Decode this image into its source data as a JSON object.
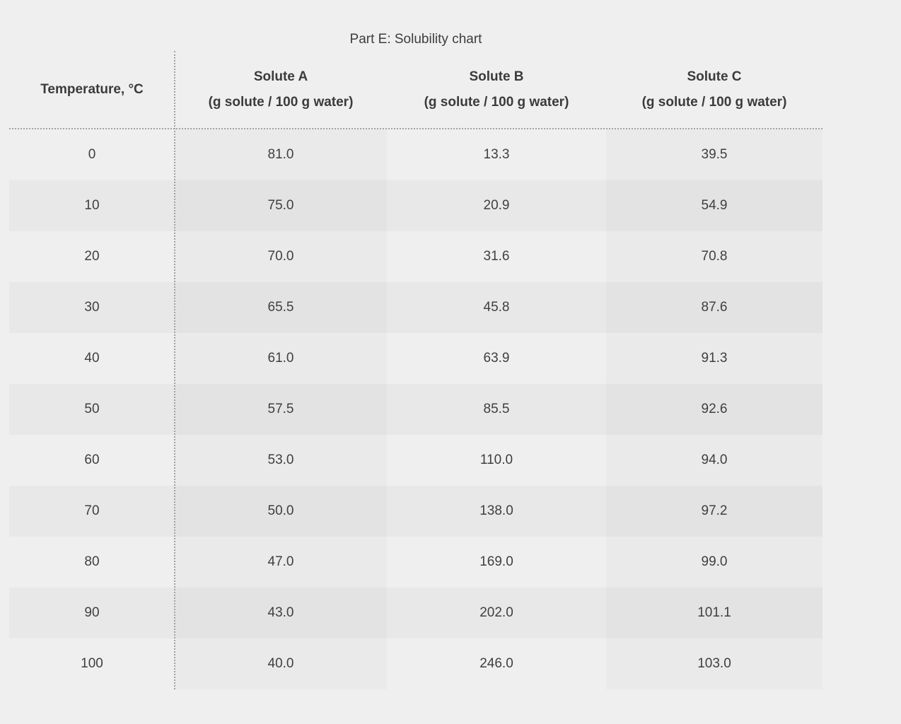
{
  "title": "Part E: Solubility chart",
  "table": {
    "headers": {
      "temperature": "Temperature, °C",
      "solute_a": "Solute A",
      "solute_b": "Solute B",
      "solute_c": "Solute C",
      "unit": "(g solute / 100 g water)"
    },
    "rows": [
      {
        "temp": "0",
        "a": "81.0",
        "b": "13.3",
        "c": "39.5"
      },
      {
        "temp": "10",
        "a": "75.0",
        "b": "20.9",
        "c": "54.9"
      },
      {
        "temp": "20",
        "a": "70.0",
        "b": "31.6",
        "c": "70.8"
      },
      {
        "temp": "30",
        "a": "65.5",
        "b": "45.8",
        "c": "87.6"
      },
      {
        "temp": "40",
        "a": "61.0",
        "b": "63.9",
        "c": "91.3"
      },
      {
        "temp": "50",
        "a": "57.5",
        "b": "85.5",
        "c": "92.6"
      },
      {
        "temp": "60",
        "a": "53.0",
        "b": "110.0",
        "c": "94.0"
      },
      {
        "temp": "70",
        "a": "50.0",
        "b": "138.0",
        "c": "97.2"
      },
      {
        "temp": "80",
        "a": "47.0",
        "b": "169.0",
        "c": "99.0"
      },
      {
        "temp": "90",
        "a": "43.0",
        "b": "202.0",
        "c": "101.1"
      },
      {
        "temp": "100",
        "a": "40.0",
        "b": "246.0",
        "c": "103.0"
      }
    ]
  },
  "chart_data": {
    "type": "table",
    "title": "Part E: Solubility chart",
    "columns": [
      "Temperature, °C",
      "Solute A (g solute / 100 g water)",
      "Solute B (g solute / 100 g water)",
      "Solute C (g solute / 100 g water)"
    ],
    "x": [
      0,
      10,
      20,
      30,
      40,
      50,
      60,
      70,
      80,
      90,
      100
    ],
    "xlabel": "Temperature, °C",
    "units": "g solute / 100 g water",
    "series": [
      {
        "name": "Solute A",
        "values": [
          81.0,
          75.0,
          70.0,
          65.5,
          61.0,
          57.5,
          53.0,
          50.0,
          47.0,
          43.0,
          40.0
        ]
      },
      {
        "name": "Solute B",
        "values": [
          13.3,
          20.9,
          31.6,
          45.8,
          63.9,
          85.5,
          110.0,
          138.0,
          169.0,
          202.0,
          246.0
        ]
      },
      {
        "name": "Solute C",
        "values": [
          39.5,
          54.9,
          70.8,
          87.6,
          91.3,
          92.6,
          94.0,
          97.2,
          99.0,
          101.1,
          103.0
        ]
      }
    ]
  },
  "colors": {
    "page_background": "#efefef",
    "odd_row_band": "#e9e9e9",
    "shaded_column": "#ebebeb",
    "text": "#3d3d3d",
    "dotted_divider": "#a2a2a2"
  }
}
